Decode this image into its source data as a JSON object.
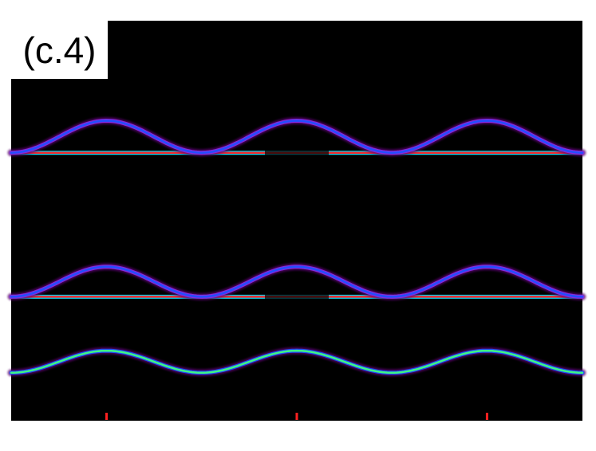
{
  "chart_data": {
    "type": "heatmap",
    "panel_label": "(c.4)",
    "title": "",
    "xlabel": "",
    "ylabel": "",
    "x_range": [
      0,
      1
    ],
    "y_range": [
      0,
      1
    ],
    "colormap": [
      "#000000",
      "#5a006e",
      "#8a2be2",
      "#1e50ff",
      "#00e0ff",
      "#40ff80",
      "#ffff00",
      "#ff2020"
    ],
    "background_color": "#000000",
    "x_markers": [
      0.167,
      0.5,
      0.833
    ],
    "marker_color": "#ff2020",
    "bands": [
      {
        "name": "upper-flat",
        "shape": "flat",
        "level": 0.67,
        "intensity": "max",
        "gap_at": 0.5
      },
      {
        "name": "upper-dispersive",
        "shape": "cosine",
        "level_min": 0.67,
        "level_max": 0.75,
        "period": 0.333,
        "intensity": "medium"
      },
      {
        "name": "middle-flat",
        "shape": "flat",
        "level": 0.31,
        "intensity": "max",
        "gap_at": 0.5
      },
      {
        "name": "middle-dispersive",
        "shape": "cosine",
        "level_min": 0.31,
        "level_max": 0.385,
        "period": 0.333,
        "intensity": "medium"
      },
      {
        "name": "lower-dispersive",
        "shape": "cosine",
        "level_min": 0.12,
        "level_max": 0.175,
        "period": 0.333,
        "intensity": "high",
        "peak_at": 0.5
      }
    ]
  }
}
